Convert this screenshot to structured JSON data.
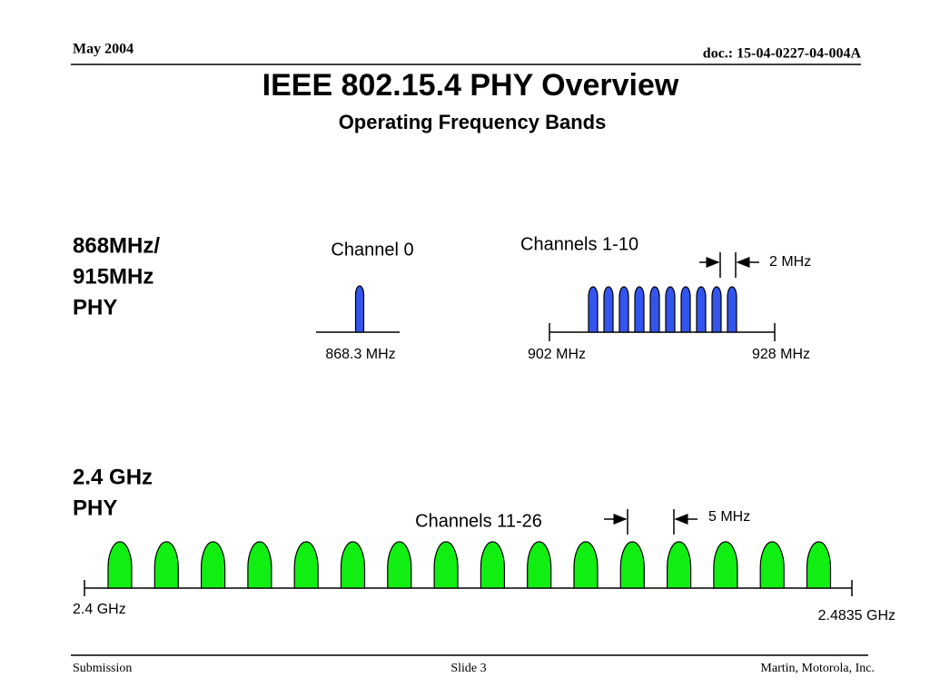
{
  "header": {
    "date": "May 2004",
    "doc": "doc.: 15-04-0227-04-004A"
  },
  "title": "IEEE 802.15.4 PHY Overview",
  "subtitle": "Operating Frequency Bands",
  "phy_868_915": {
    "label": [
      "868MHz/",
      "915MHz",
      "PHY"
    ],
    "channel0": {
      "title": "Channel 0",
      "freq": "868.3 MHz"
    },
    "channels1_10": {
      "title": "Channels 1-10",
      "spacing": "2 MHz",
      "start": "902 MHz",
      "end": "928 MHz"
    }
  },
  "phy_2_4": {
    "label": [
      "2.4 GHz",
      "PHY"
    ],
    "title": "Channels 11-26",
    "spacing": "5 MHz",
    "start": "2.4 GHz",
    "end": "2.4835 GHz"
  },
  "footer": {
    "left": "Submission",
    "center": "Slide 3",
    "right": "Martin, Motorola, Inc."
  }
}
